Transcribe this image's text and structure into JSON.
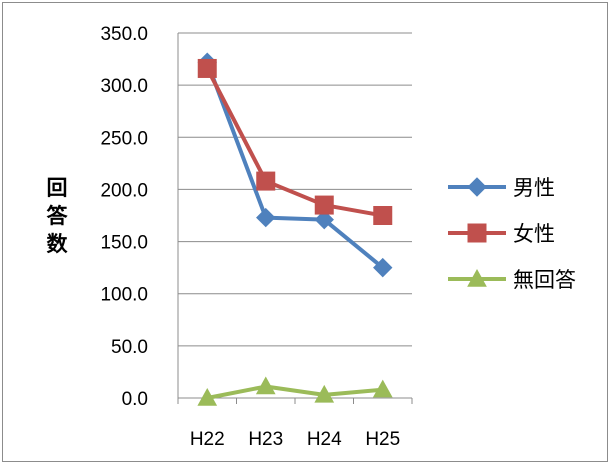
{
  "chart_data": {
    "type": "line",
    "title": "",
    "xlabel": "",
    "ylabel": "回答数",
    "ylim": [
      0,
      350
    ],
    "y_ticks": [
      "0.0",
      "50.0",
      "100.0",
      "150.0",
      "200.0",
      "250.0",
      "300.0",
      "350.0"
    ],
    "categories": [
      "H22",
      "H23",
      "H24",
      "H25"
    ],
    "grid": true,
    "legend": "right",
    "series": [
      {
        "name": "男性",
        "values": [
          322,
          173,
          171,
          125
        ],
        "color": "#4f81bd",
        "marker": "diamond"
      },
      {
        "name": "女性",
        "values": [
          316,
          208,
          185,
          175
        ],
        "color": "#c0504d",
        "marker": "square"
      },
      {
        "name": "無回答",
        "values": [
          0,
          11,
          3,
          8
        ],
        "color": "#9bbb59",
        "marker": "triangle"
      }
    ]
  }
}
